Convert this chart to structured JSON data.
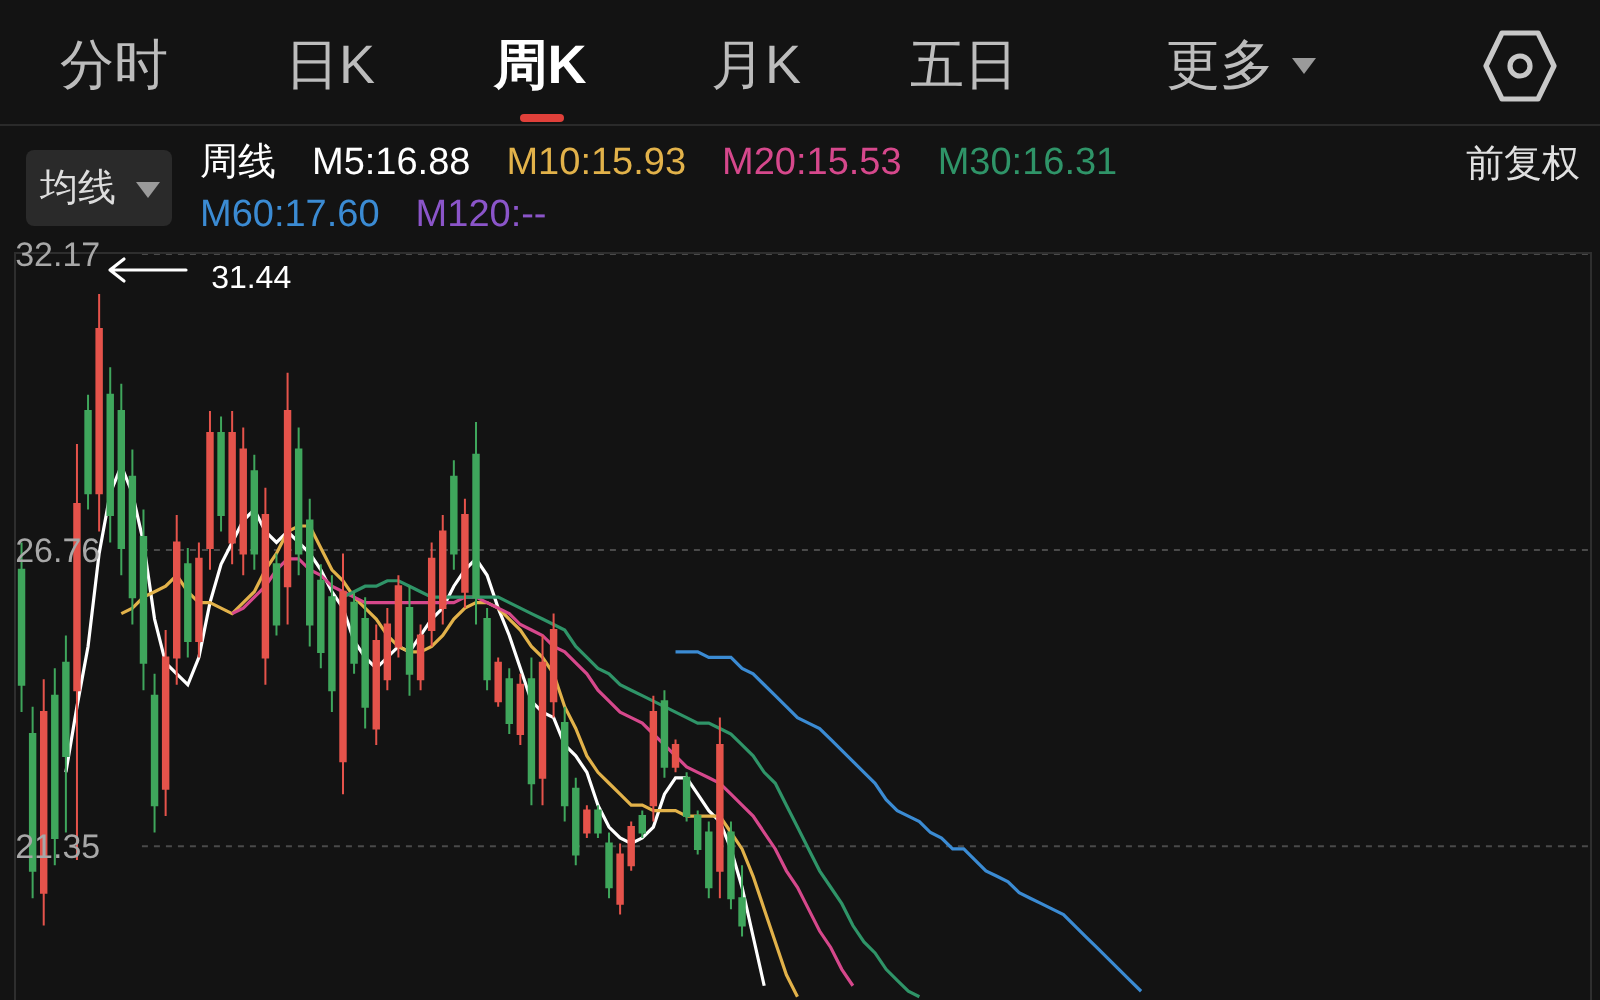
{
  "chart_data": {
    "type": "candlestick",
    "annotations": [
      "分时",
      "日K",
      "周K",
      "月K",
      "五日",
      "更多",
      "均线",
      "前复权",
      "31.44"
    ],
    "legend_title": "周线",
    "legend": "top",
    "categories": [
      null,
      null,
      null,
      null,
      null,
      null,
      null,
      null,
      null,
      null,
      null,
      null,
      null,
      null,
      null,
      null,
      null,
      null,
      null,
      null,
      null,
      null,
      null,
      null,
      null,
      null,
      null,
      null,
      null,
      null,
      null,
      null,
      null,
      null,
      null,
      null,
      null,
      null,
      null,
      null,
      null,
      null,
      null,
      null,
      null,
      null,
      null,
      null,
      null,
      null,
      null,
      null,
      null,
      null,
      null,
      null,
      null,
      null,
      null,
      null,
      null,
      null,
      null,
      null,
      null,
      null,
      null,
      null,
      null,
      null,
      null,
      null,
      null,
      null,
      null,
      null,
      null,
      null,
      null,
      null,
      null,
      null,
      null,
      null,
      null,
      null,
      null,
      null,
      null,
      null,
      null,
      null,
      null,
      null,
      null,
      null,
      null,
      null,
      null,
      null,
      null,
      null,
      null,
      null,
      null,
      null,
      null,
      null,
      null,
      null,
      null,
      null,
      null,
      null,
      null,
      null,
      null,
      null,
      null,
      null,
      null,
      null,
      null,
      null,
      null,
      null,
      null,
      null,
      null,
      null,
      null,
      null,
      null,
      null,
      null,
      null,
      null,
      null,
      null,
      null,
      null,
      null
    ],
    "ohlc": [
      [
        26.4,
        26.9,
        23.8,
        24.3
      ],
      [
        23.4,
        23.9,
        20.4,
        20.9
      ],
      [
        20.5,
        24.4,
        19.9,
        23.8
      ],
      [
        24.1,
        24.6,
        21.0,
        21.5
      ],
      [
        24.7,
        25.2,
        21.6,
        23.0
      ],
      [
        24.2,
        28.7,
        21.1,
        27.6
      ],
      [
        29.3,
        29.6,
        27.5,
        27.8
      ],
      [
        27.8,
        31.44,
        27.1,
        30.8
      ],
      [
        29.6,
        30.1,
        26.9,
        27.4
      ],
      [
        29.3,
        29.8,
        26.3,
        26.8
      ],
      [
        28.1,
        28.6,
        25.4,
        25.9
      ],
      [
        27.0,
        27.5,
        24.2,
        24.7
      ],
      [
        24.1,
        24.5,
        21.6,
        22.1
      ],
      [
        22.4,
        25.3,
        21.9,
        24.8
      ],
      [
        24.8,
        27.4,
        24.3,
        26.9
      ],
      [
        26.5,
        26.8,
        24.8,
        25.1
      ],
      [
        25.1,
        26.9,
        24.8,
        26.6
      ],
      [
        26.8,
        29.3,
        26.4,
        28.9
      ],
      [
        28.9,
        29.2,
        27.1,
        27.4
      ],
      [
        26.9,
        29.3,
        26.5,
        28.9
      ],
      [
        26.7,
        29.0,
        26.3,
        28.6
      ],
      [
        28.2,
        28.5,
        26.4,
        26.7
      ],
      [
        24.8,
        27.9,
        24.3,
        27.4
      ],
      [
        26.5,
        26.7,
        25.2,
        25.4
      ],
      [
        26.1,
        30.0,
        25.4,
        29.3
      ],
      [
        28.6,
        29.0,
        26.3,
        26.7
      ],
      [
        27.3,
        27.7,
        25.0,
        25.4
      ],
      [
        26.2,
        26.5,
        24.6,
        24.9
      ],
      [
        25.9,
        26.3,
        23.8,
        24.2
      ],
      [
        22.9,
        26.7,
        22.3,
        26.0
      ],
      [
        25.8,
        26.0,
        24.5,
        24.7
      ],
      [
        25.5,
        25.9,
        23.5,
        23.9
      ],
      [
        23.5,
        25.4,
        23.2,
        25.1
      ],
      [
        24.4,
        25.7,
        24.2,
        25.4
      ],
      [
        25.0,
        26.3,
        24.8,
        26.1
      ],
      [
        25.7,
        26.1,
        24.1,
        24.5
      ],
      [
        24.4,
        25.4,
        24.2,
        25.2
      ],
      [
        25.3,
        26.9,
        25.0,
        26.6
      ],
      [
        25.7,
        27.4,
        25.4,
        27.1
      ],
      [
        28.1,
        28.4,
        26.4,
        26.7
      ],
      [
        26.0,
        27.7,
        25.7,
        27.4
      ],
      [
        28.5,
        29.1,
        25.4,
        25.9
      ],
      [
        25.5,
        25.7,
        24.2,
        24.4
      ],
      [
        24.0,
        24.8,
        23.9,
        24.7
      ],
      [
        24.4,
        24.6,
        23.4,
        23.6
      ],
      [
        23.4,
        24.5,
        23.2,
        24.3
      ],
      [
        24.4,
        24.8,
        22.1,
        22.5
      ],
      [
        22.6,
        25.2,
        22.1,
        24.7
      ],
      [
        24.0,
        25.6,
        23.7,
        25.3
      ],
      [
        23.6,
        23.9,
        21.8,
        22.1
      ],
      [
        22.4,
        22.6,
        21.0,
        21.2
      ],
      [
        21.6,
        22.1,
        21.5,
        22.0
      ],
      [
        22.0,
        22.1,
        21.5,
        21.6
      ],
      [
        21.4,
        21.6,
        20.4,
        20.6
      ],
      [
        20.3,
        21.4,
        20.1,
        21.2
      ],
      [
        21.0,
        21.8,
        20.9,
        21.7
      ],
      [
        21.9,
        22.0,
        21.5,
        21.6
      ],
      [
        22.1,
        24.1,
        21.8,
        23.8
      ],
      [
        24.0,
        24.2,
        22.6,
        22.8
      ],
      [
        22.8,
        23.3,
        22.7,
        23.2
      ],
      [
        22.6,
        22.7,
        21.8,
        21.9
      ],
      [
        21.9,
        22.0,
        21.2,
        21.3
      ],
      [
        21.6,
        21.8,
        20.4,
        20.6
      ],
      [
        20.9,
        23.7,
        20.4,
        23.2
      ],
      [
        21.6,
        21.8,
        20.2,
        20.4
      ],
      [
        20.4,
        21.0,
        19.7,
        19.9
      ],
      null,
      null,
      null,
      null,
      null,
      null,
      null,
      null,
      null,
      null,
      null,
      null,
      null,
      null,
      null,
      null,
      null,
      null,
      null,
      null,
      null,
      null,
      null,
      null,
      null,
      null,
      null,
      null,
      null,
      null,
      null,
      null,
      null,
      null,
      null,
      null,
      null,
      null,
      null,
      null,
      null,
      null,
      null,
      null,
      null,
      null,
      null,
      null,
      null,
      null,
      null,
      null,
      null,
      null,
      null,
      null,
      null,
      null,
      null,
      null,
      null,
      null,
      null,
      null,
      null,
      null,
      null,
      null,
      null,
      null,
      null,
      null,
      null,
      null,
      null,
      null
    ],
    "colors": [
      "#3fa65c",
      "#3fa65c",
      "#e5534b",
      "#3fa65c",
      "#3fa65c",
      "#e5534b",
      "#3fa65c",
      "#e5534b",
      "#3fa65c",
      "#3fa65c",
      "#3fa65c",
      "#3fa65c",
      "#3fa65c",
      "#e5534b",
      "#e5534b",
      "#3fa65c",
      "#e5534b",
      "#e5534b",
      "#3fa65c",
      "#e5534b",
      "#e5534b",
      "#3fa65c",
      "#e5534b",
      "#3fa65c",
      "#e5534b",
      "#3fa65c",
      "#3fa65c",
      "#3fa65c",
      "#3fa65c",
      "#e5534b",
      "#3fa65c",
      "#3fa65c",
      "#e5534b",
      "#e5534b",
      "#e5534b",
      "#3fa65c",
      "#e5534b",
      "#e5534b",
      "#e5534b",
      "#3fa65c",
      "#e5534b",
      "#3fa65c",
      "#3fa65c",
      "#e5534b",
      "#3fa65c",
      "#e5534b",
      "#3fa65c",
      "#e5534b",
      "#e5534b",
      "#3fa65c",
      "#3fa65c",
      "#e5534b",
      "#3fa65c",
      "#3fa65c",
      "#e5534b",
      "#e5534b",
      "#3fa65c",
      "#e5534b",
      "#3fa65c",
      "#e5534b",
      "#3fa65c",
      "#3fa65c",
      "#3fa65c",
      "#e5534b",
      "#3fa65c",
      "#3fa65c",
      null,
      null,
      null,
      null,
      null,
      null,
      null,
      null,
      null,
      null,
      null,
      null,
      null,
      null,
      null,
      null,
      null,
      null,
      null,
      null,
      null,
      null,
      null,
      null,
      null,
      null,
      null,
      null,
      null,
      null,
      null,
      null,
      null,
      null,
      null,
      null,
      null,
      null,
      null,
      null,
      null,
      null,
      null,
      null,
      null,
      null,
      null,
      null,
      null,
      null,
      null,
      null,
      null,
      null,
      null,
      null,
      null,
      null,
      null,
      null,
      null,
      null,
      null,
      null,
      null,
      null,
      null,
      null,
      null,
      null,
      null,
      null,
      null,
      null,
      null,
      null
    ],
    "series": [
      {
        "name": "M5:16.88",
        "color": "#ffffff",
        "type": "line",
        "values": [
          null,
          null,
          null,
          null,
          22.7,
          23.9,
          25.0,
          26.7,
          27.8,
          28.3,
          27.8,
          26.9,
          25.5,
          24.7,
          24.5,
          24.3,
          24.8,
          25.8,
          26.5,
          26.9,
          27.3,
          27.5,
          27.1,
          26.9,
          27.1,
          26.9,
          26.7,
          26.4,
          26.0,
          25.7,
          25.1,
          24.8,
          24.6,
          24.8,
          25.0,
          24.9,
          25.2,
          25.5,
          25.7,
          26.1,
          26.4,
          26.6,
          26.3,
          25.7,
          25.2,
          24.6,
          24.0,
          23.8,
          23.7,
          23.2,
          23.0,
          22.7,
          22.1,
          21.7,
          21.5,
          21.4,
          21.5,
          21.7,
          22.3,
          22.6,
          22.6,
          22.3,
          22.0,
          21.8,
          21.3,
          20.6,
          19.7,
          18.8,
          null,
          null,
          null,
          null,
          null,
          null,
          null,
          null,
          null,
          null,
          null,
          null,
          null,
          null,
          null,
          null,
          null,
          null,
          null,
          null,
          null,
          null,
          null,
          null,
          null,
          null,
          null,
          null,
          null,
          null,
          null,
          null,
          null,
          null,
          null,
          null,
          null,
          null,
          null,
          null,
          null,
          null,
          null,
          null,
          null,
          null,
          null,
          null,
          null,
          null,
          null,
          null,
          null,
          null,
          null,
          null,
          null,
          null,
          null,
          null,
          null,
          null,
          null,
          null,
          null,
          null,
          null,
          null,
          null,
          null,
          null,
          null,
          null,
          null
        ]
      },
      {
        "name": "M10:15.93",
        "color": "#e2b24a",
        "type": "line",
        "values": [
          null,
          null,
          null,
          null,
          null,
          null,
          null,
          null,
          null,
          25.6,
          25.7,
          25.9,
          26.0,
          26.1,
          26.3,
          26.0,
          25.8,
          25.8,
          25.7,
          25.6,
          25.8,
          26.0,
          26.4,
          26.7,
          27.1,
          27.2,
          27.2,
          26.8,
          26.4,
          26.2,
          25.9,
          25.7,
          25.5,
          25.2,
          25.0,
          24.9,
          24.9,
          25.0,
          25.2,
          25.5,
          25.7,
          25.8,
          25.8,
          25.7,
          25.5,
          25.3,
          25.0,
          24.8,
          24.5,
          23.9,
          23.5,
          23.0,
          22.7,
          22.5,
          22.3,
          22.1,
          22.1,
          22.0,
          22.0,
          22.0,
          21.9,
          21.9,
          21.9,
          21.9,
          21.6,
          21.3,
          20.8,
          20.2,
          19.6,
          19.0,
          18.6,
          null,
          null,
          null,
          null,
          null,
          null,
          null,
          null,
          null,
          null,
          null,
          null,
          null,
          null,
          null,
          null,
          null,
          null,
          null,
          null,
          null,
          null,
          null,
          null,
          null,
          null,
          null,
          null,
          null,
          null,
          null,
          null,
          null,
          null,
          null,
          null,
          null,
          null,
          null,
          null,
          null,
          null,
          null,
          null,
          null,
          null,
          null,
          null,
          null,
          null,
          null,
          null,
          null,
          null,
          null,
          null,
          null,
          null,
          null,
          null,
          null,
          null,
          null,
          null,
          null,
          null,
          null,
          null,
          null,
          null,
          null
        ]
      },
      {
        "name": "M20:15.53",
        "color": "#d6488c",
        "type": "line",
        "values": [
          null,
          null,
          null,
          null,
          null,
          null,
          null,
          null,
          null,
          null,
          null,
          null,
          null,
          null,
          null,
          null,
          null,
          null,
          null,
          25.6,
          25.7,
          25.9,
          26.1,
          26.4,
          26.6,
          26.6,
          26.4,
          26.3,
          26.1,
          26.0,
          25.9,
          25.8,
          25.8,
          25.8,
          25.8,
          25.8,
          25.8,
          25.8,
          25.8,
          25.8,
          25.9,
          25.9,
          25.8,
          25.7,
          25.6,
          25.4,
          25.3,
          25.2,
          25.0,
          24.9,
          24.7,
          24.5,
          24.2,
          24.0,
          23.8,
          23.7,
          23.6,
          23.4,
          23.2,
          23.0,
          22.8,
          22.7,
          22.6,
          22.5,
          22.3,
          22.1,
          21.9,
          21.6,
          21.3,
          20.9,
          20.6,
          20.2,
          19.8,
          19.5,
          19.1,
          18.8,
          null,
          null,
          null,
          null,
          null,
          null,
          null,
          null,
          null,
          null,
          null,
          null,
          null,
          null,
          null,
          null,
          null,
          null,
          null,
          null,
          null,
          null,
          null,
          null,
          null,
          null,
          null,
          null,
          null,
          null,
          null,
          null,
          null,
          null,
          null,
          null,
          null,
          null,
          null,
          null,
          null,
          null,
          null,
          null,
          null,
          null,
          null,
          null,
          null,
          null,
          null,
          null,
          null,
          null,
          null,
          null,
          null,
          null,
          null,
          null,
          null,
          null,
          null,
          null,
          null,
          null
        ]
      },
      {
        "name": "M30:16.31",
        "color": "#2f9468",
        "type": "line",
        "values": [
          null,
          null,
          null,
          null,
          null,
          null,
          null,
          null,
          null,
          null,
          null,
          null,
          null,
          null,
          null,
          null,
          null,
          null,
          null,
          null,
          null,
          null,
          null,
          null,
          null,
          null,
          null,
          null,
          null,
          25.9,
          26.0,
          26.1,
          26.1,
          26.2,
          26.2,
          26.1,
          26.0,
          25.9,
          25.9,
          25.9,
          25.9,
          25.9,
          25.9,
          25.9,
          25.8,
          25.7,
          25.6,
          25.5,
          25.4,
          25.3,
          25.0,
          24.8,
          24.6,
          24.5,
          24.3,
          24.2,
          24.1,
          24.0,
          23.9,
          23.8,
          23.7,
          23.6,
          23.6,
          23.5,
          23.4,
          23.2,
          23.0,
          22.7,
          22.5,
          22.1,
          21.7,
          21.3,
          20.9,
          20.6,
          20.3,
          19.9,
          19.6,
          19.4,
          19.1,
          18.9,
          18.7,
          18.6,
          null,
          null,
          null,
          null,
          null,
          null,
          null,
          null,
          null,
          null,
          null,
          null,
          null,
          null,
          null,
          null,
          null,
          null,
          null,
          null,
          null,
          null,
          null,
          null,
          null,
          null,
          null,
          null,
          null,
          null,
          null,
          null,
          null,
          null,
          null,
          null,
          null,
          null,
          null,
          null,
          null,
          null,
          null,
          null,
          null,
          null,
          null,
          null,
          null,
          null,
          null,
          null,
          null,
          null,
          null,
          null,
          null,
          null,
          null,
          null
        ]
      },
      {
        "name": "M60:17.60",
        "color": "#3b8bd3",
        "type": "line",
        "values": [
          null,
          null,
          null,
          null,
          null,
          null,
          null,
          null,
          null,
          null,
          null,
          null,
          null,
          null,
          null,
          null,
          null,
          null,
          null,
          null,
          null,
          null,
          null,
          null,
          null,
          null,
          null,
          null,
          null,
          null,
          null,
          null,
          null,
          null,
          null,
          null,
          null,
          null,
          null,
          null,
          null,
          null,
          null,
          null,
          null,
          null,
          null,
          null,
          null,
          null,
          null,
          null,
          null,
          null,
          null,
          null,
          null,
          null,
          null,
          24.9,
          24.9,
          24.9,
          24.8,
          24.8,
          24.8,
          24.6,
          24.5,
          24.3,
          24.1,
          23.9,
          23.7,
          23.6,
          23.5,
          23.3,
          23.1,
          22.9,
          22.7,
          22.5,
          22.2,
          22.0,
          21.9,
          21.8,
          21.6,
          21.5,
          21.3,
          21.3,
          21.1,
          20.9,
          20.8,
          20.7,
          20.5,
          20.4,
          20.3,
          20.2,
          20.1,
          19.9,
          19.7,
          19.5,
          19.3,
          19.1,
          18.9,
          18.7,
          null,
          null,
          null,
          null,
          null,
          null,
          null,
          null,
          null,
          null,
          null,
          null,
          null,
          null,
          null,
          null,
          null,
          null,
          null,
          null,
          null,
          null,
          null,
          null,
          null,
          null,
          null,
          null,
          null,
          null,
          null,
          null,
          null,
          null,
          null,
          null,
          null,
          null,
          null,
          null
        ]
      },
      {
        "name": "M120:--",
        "color": "#8b55c9",
        "type": "line",
        "values": [
          null,
          null,
          null,
          null,
          null,
          null,
          null,
          null,
          null,
          null,
          null,
          null,
          null,
          null,
          null,
          null,
          null,
          null,
          null,
          null,
          null,
          null,
          null,
          null,
          null,
          null,
          null,
          null,
          null,
          null,
          null,
          null,
          null,
          null,
          null,
          null,
          null,
          null,
          null,
          null,
          null,
          null,
          null,
          null,
          null,
          null,
          null,
          null,
          null,
          null,
          null,
          null,
          null,
          null,
          null,
          null,
          null,
          null,
          null,
          null,
          null,
          null,
          null,
          null,
          null,
          null,
          null,
          null,
          null,
          null,
          null,
          null,
          null,
          null,
          null,
          null,
          null,
          null,
          null,
          null,
          null,
          null,
          null,
          null,
          null,
          null,
          null,
          null,
          null,
          null,
          null,
          null,
          null,
          null,
          null,
          null,
          null,
          null,
          null,
          null,
          null,
          null,
          null,
          null,
          null,
          null,
          null,
          null,
          null,
          null,
          null,
          null,
          null,
          null,
          null,
          null,
          null,
          null,
          null,
          null,
          null,
          null,
          null,
          null,
          null,
          null,
          null,
          null,
          null,
          null,
          null,
          null,
          null,
          null,
          null,
          null,
          null,
          null,
          null,
          null,
          null,
          null
        ]
      }
    ],
    "ylim": [
      18.54,
      32.17
    ],
    "yticks": [
      32.17,
      26.76,
      21.35
    ],
    "grid": "y",
    "tick_labels": "y",
    "marker": "none",
    "line_style": "solid"
  }
}
